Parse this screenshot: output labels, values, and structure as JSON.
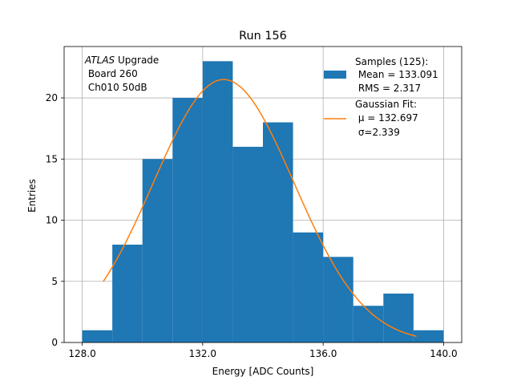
{
  "chart_data": {
    "type": "bar",
    "title": "Run 156",
    "xlabel": "Energy [ADC Counts]",
    "ylabel": "Entries",
    "xlim": [
      127.4,
      140.6
    ],
    "ylim": [
      0,
      24.2
    ],
    "grid": true,
    "xticks": [
      128.0,
      132.0,
      136.0,
      140.0
    ],
    "xtick_labels": [
      "128.0",
      "132.0",
      "136.0",
      "140.0"
    ],
    "yticks": [
      0,
      5,
      10,
      15,
      20
    ],
    "ytick_labels": [
      "0",
      "5",
      "10",
      "15",
      "20"
    ],
    "annotation": {
      "italic": "ATLAS",
      "rest": " Upgrade",
      "line2": " Board 260",
      "line3": " Ch010 50dB"
    },
    "legend": {
      "placement": "top-right",
      "histogram_label_lines": [
        "Samples (125):",
        " Mean = 133.091",
        " RMS = 2.317"
      ],
      "fit_label_lines": [
        "Gaussian Fit:",
        " μ = 132.697",
        " σ=2.339"
      ]
    },
    "series": [
      {
        "type": "histogram",
        "color": "#1f77b4",
        "bin_edges": [
          128,
          129,
          130,
          131,
          132,
          133,
          134,
          135,
          136,
          137,
          138,
          139,
          140
        ],
        "counts": [
          1,
          8,
          15,
          20,
          23,
          16,
          18,
          9,
          7,
          3,
          4,
          1
        ]
      },
      {
        "type": "line",
        "color": "#ff7f0e",
        "fit": {
          "amplitude": 21.5,
          "mu": 132.697,
          "sigma": 2.339
        },
        "x_range": [
          128.7,
          139.1
        ]
      }
    ]
  }
}
